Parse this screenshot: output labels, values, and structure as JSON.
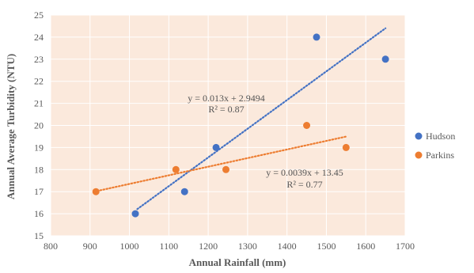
{
  "chart_data": {
    "type": "scatter",
    "title": "",
    "xlabel": "Annual Rainfall (mm)",
    "ylabel": "Annual Average Turbidity (NTU)",
    "xlim": [
      800,
      1700
    ],
    "ylim": [
      15,
      25
    ],
    "x_ticks": [
      800,
      900,
      1000,
      1100,
      1200,
      1300,
      1400,
      1500,
      1600,
      1700
    ],
    "y_ticks": [
      15,
      16,
      17,
      18,
      19,
      20,
      21,
      22,
      23,
      24,
      25
    ],
    "grid": true,
    "plot_background": "#fbe9dc",
    "grid_color": "#ffffff",
    "legend_position": "right",
    "series": [
      {
        "name": "Hudson",
        "color": "#4472c4",
        "points": [
          [
            1015,
            16
          ],
          [
            1140,
            17
          ],
          [
            1220,
            19
          ],
          [
            1475,
            24
          ],
          [
            1650,
            23
          ]
        ],
        "trendline": {
          "slope": 0.013,
          "intercept": 2.9494,
          "x_range": [
            1020,
            1650
          ],
          "equation": "y = 0.013x + 2.9494",
          "r2": "R² = 0.87"
        }
      },
      {
        "name": "Parkins",
        "color": "#ed7d31",
        "points": [
          [
            915,
            17
          ],
          [
            1118,
            18
          ],
          [
            1245,
            18
          ],
          [
            1450,
            20
          ],
          [
            1550,
            19
          ]
        ],
        "trendline": {
          "slope": 0.0039,
          "intercept": 13.45,
          "x_range": [
            910,
            1550
          ],
          "equation": "y = 0.0039x + 13.45",
          "r2": "R² = 0.77"
        }
      }
    ]
  }
}
